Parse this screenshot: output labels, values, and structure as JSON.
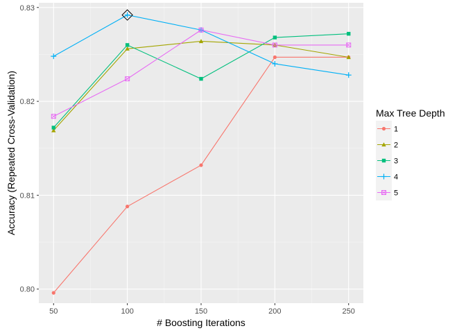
{
  "chart_data": {
    "type": "line",
    "title": "",
    "xlabel": "# Boosting Iterations",
    "ylabel": "Accuracy (Repeated Cross-Validation)",
    "x": [
      50,
      100,
      150,
      200,
      250
    ],
    "x_ticks": [
      "50",
      "100",
      "150",
      "200",
      "250"
    ],
    "y_ticks": [
      "0.80",
      "0.81",
      "0.82",
      "0.83"
    ],
    "xlim": [
      40,
      260
    ],
    "ylim": [
      0.7985,
      0.8305
    ],
    "grid": true,
    "legend_position": "right",
    "legend_title": "Max Tree Depth",
    "series": [
      {
        "name": "1",
        "color": "#F8766D",
        "marker": "circle",
        "values": [
          0.7996,
          0.8088,
          0.8132,
          0.8247,
          0.8247
        ]
      },
      {
        "name": "2",
        "color": "#A3A500",
        "marker": "triangle",
        "values": [
          0.8169,
          0.8256,
          0.8264,
          0.826,
          0.8247
        ]
      },
      {
        "name": "3",
        "color": "#00BF7D",
        "marker": "square",
        "values": [
          0.8172,
          0.826,
          0.8224,
          0.8268,
          0.8272
        ]
      },
      {
        "name": "4",
        "color": "#00B0F6",
        "marker": "plus",
        "values": [
          0.8248,
          0.8292,
          0.8276,
          0.824,
          0.8228
        ]
      },
      {
        "name": "5",
        "color": "#E76BF3",
        "marker": "box-x",
        "values": [
          0.8184,
          0.8224,
          0.8276,
          0.826,
          0.826
        ]
      }
    ],
    "highlight": {
      "series": "4",
      "x": 100,
      "y": 0.8292,
      "marker": "diamond"
    }
  }
}
